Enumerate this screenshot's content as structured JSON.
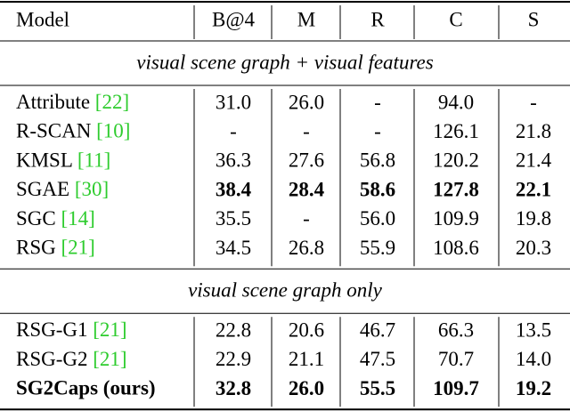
{
  "table": {
    "header": [
      "Model",
      "B@4",
      "M",
      "R",
      "C",
      "S"
    ],
    "sections": [
      {
        "title": "visual scene graph + visual features",
        "rows": [
          {
            "model": "Attribute",
            "ref": "[22]",
            "model_bold": false,
            "values": [
              "31.0",
              "26.0",
              "-",
              "94.0",
              "-"
            ],
            "bold": [
              false,
              false,
              false,
              false,
              false
            ]
          },
          {
            "model": "R-SCAN",
            "ref": "[10]",
            "model_bold": false,
            "values": [
              "-",
              "-",
              "-",
              "126.1",
              "21.8"
            ],
            "bold": [
              false,
              false,
              false,
              false,
              false
            ]
          },
          {
            "model": "KMSL",
            "ref": "[11]",
            "model_bold": false,
            "values": [
              "36.3",
              "27.6",
              "56.8",
              "120.2",
              "21.4"
            ],
            "bold": [
              false,
              false,
              false,
              false,
              false
            ]
          },
          {
            "model": "SGAE",
            "ref": "[30]",
            "model_bold": false,
            "values": [
              "38.4",
              "28.4",
              "58.6",
              "127.8",
              "22.1"
            ],
            "bold": [
              true,
              true,
              true,
              true,
              true
            ]
          },
          {
            "model": "SGC",
            "ref": "[14]",
            "model_bold": false,
            "values": [
              "35.5",
              "-",
              "56.0",
              "109.9",
              "19.8"
            ],
            "bold": [
              false,
              false,
              false,
              false,
              false
            ]
          },
          {
            "model": "RSG",
            "ref": "[21]",
            "model_bold": false,
            "values": [
              "34.5",
              "26.8",
              "55.9",
              "108.6",
              "20.3"
            ],
            "bold": [
              false,
              false,
              false,
              false,
              false
            ]
          }
        ]
      },
      {
        "title": "visual scene graph only",
        "rows": [
          {
            "model": "RSG-G1",
            "ref": "[21]",
            "model_bold": false,
            "values": [
              "22.8",
              "20.6",
              "46.7",
              "66.3",
              "13.5"
            ],
            "bold": [
              false,
              false,
              false,
              false,
              false
            ]
          },
          {
            "model": "RSG-G2",
            "ref": "[21]",
            "model_bold": false,
            "values": [
              "22.9",
              "21.1",
              "47.5",
              "70.7",
              "14.0"
            ],
            "bold": [
              false,
              false,
              false,
              false,
              false
            ]
          },
          {
            "model": "SG2Caps (ours)",
            "ref": null,
            "model_bold": true,
            "values": [
              "32.8",
              "26.0",
              "55.5",
              "109.7",
              "19.2"
            ],
            "bold": [
              true,
              true,
              true,
              true,
              true
            ]
          }
        ]
      }
    ]
  }
}
